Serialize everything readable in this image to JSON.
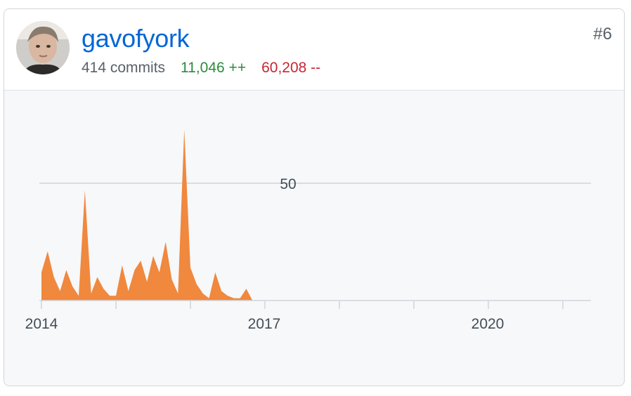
{
  "contributor": {
    "username": "gavofyork",
    "rank": "#6",
    "commits": "414 commits",
    "additions": "11,046 ++",
    "deletions": "60,208 --"
  },
  "colors": {
    "link": "#0366d6",
    "additions": "#2c8a3e",
    "deletions": "#cb2431",
    "area": "#f0883e"
  },
  "chart_data": {
    "type": "area",
    "title": "",
    "xlabel": "",
    "ylabel": "",
    "y_ticks": [
      50
    ],
    "x_tick_labels": [
      "2014",
      "2017",
      "2020"
    ],
    "ylim": [
      0,
      100
    ],
    "x_range": [
      "2014-01",
      "2021-05"
    ],
    "grid": true,
    "series": [
      {
        "values": [
          [
            "2014-01",
            12
          ],
          [
            "2014-02",
            21
          ],
          [
            "2014-03",
            10
          ],
          [
            "2014-04",
            4
          ],
          [
            "2014-05",
            13
          ],
          [
            "2014-06",
            6
          ],
          [
            "2014-07",
            2
          ],
          [
            "2014-08",
            47
          ],
          [
            "2014-09",
            3
          ],
          [
            "2014-10",
            10
          ],
          [
            "2014-11",
            5
          ],
          [
            "2014-12",
            2
          ],
          [
            "2015-01",
            2
          ],
          [
            "2015-02",
            15
          ],
          [
            "2015-03",
            4
          ],
          [
            "2015-04",
            13
          ],
          [
            "2015-05",
            17
          ],
          [
            "2015-06",
            8
          ],
          [
            "2015-07",
            19
          ],
          [
            "2015-08",
            12
          ],
          [
            "2015-09",
            25
          ],
          [
            "2015-10",
            9
          ],
          [
            "2015-11",
            3
          ],
          [
            "2015-12",
            73
          ],
          [
            "2016-01",
            14
          ],
          [
            "2016-02",
            7
          ],
          [
            "2016-03",
            3
          ],
          [
            "2016-04",
            1
          ],
          [
            "2016-05",
            12
          ],
          [
            "2016-06",
            4
          ],
          [
            "2016-07",
            2
          ],
          [
            "2016-08",
            1
          ],
          [
            "2016-09",
            1
          ],
          [
            "2016-10",
            5
          ],
          [
            "2016-11",
            0
          ],
          [
            "2016-12",
            0
          ]
        ]
      }
    ]
  }
}
